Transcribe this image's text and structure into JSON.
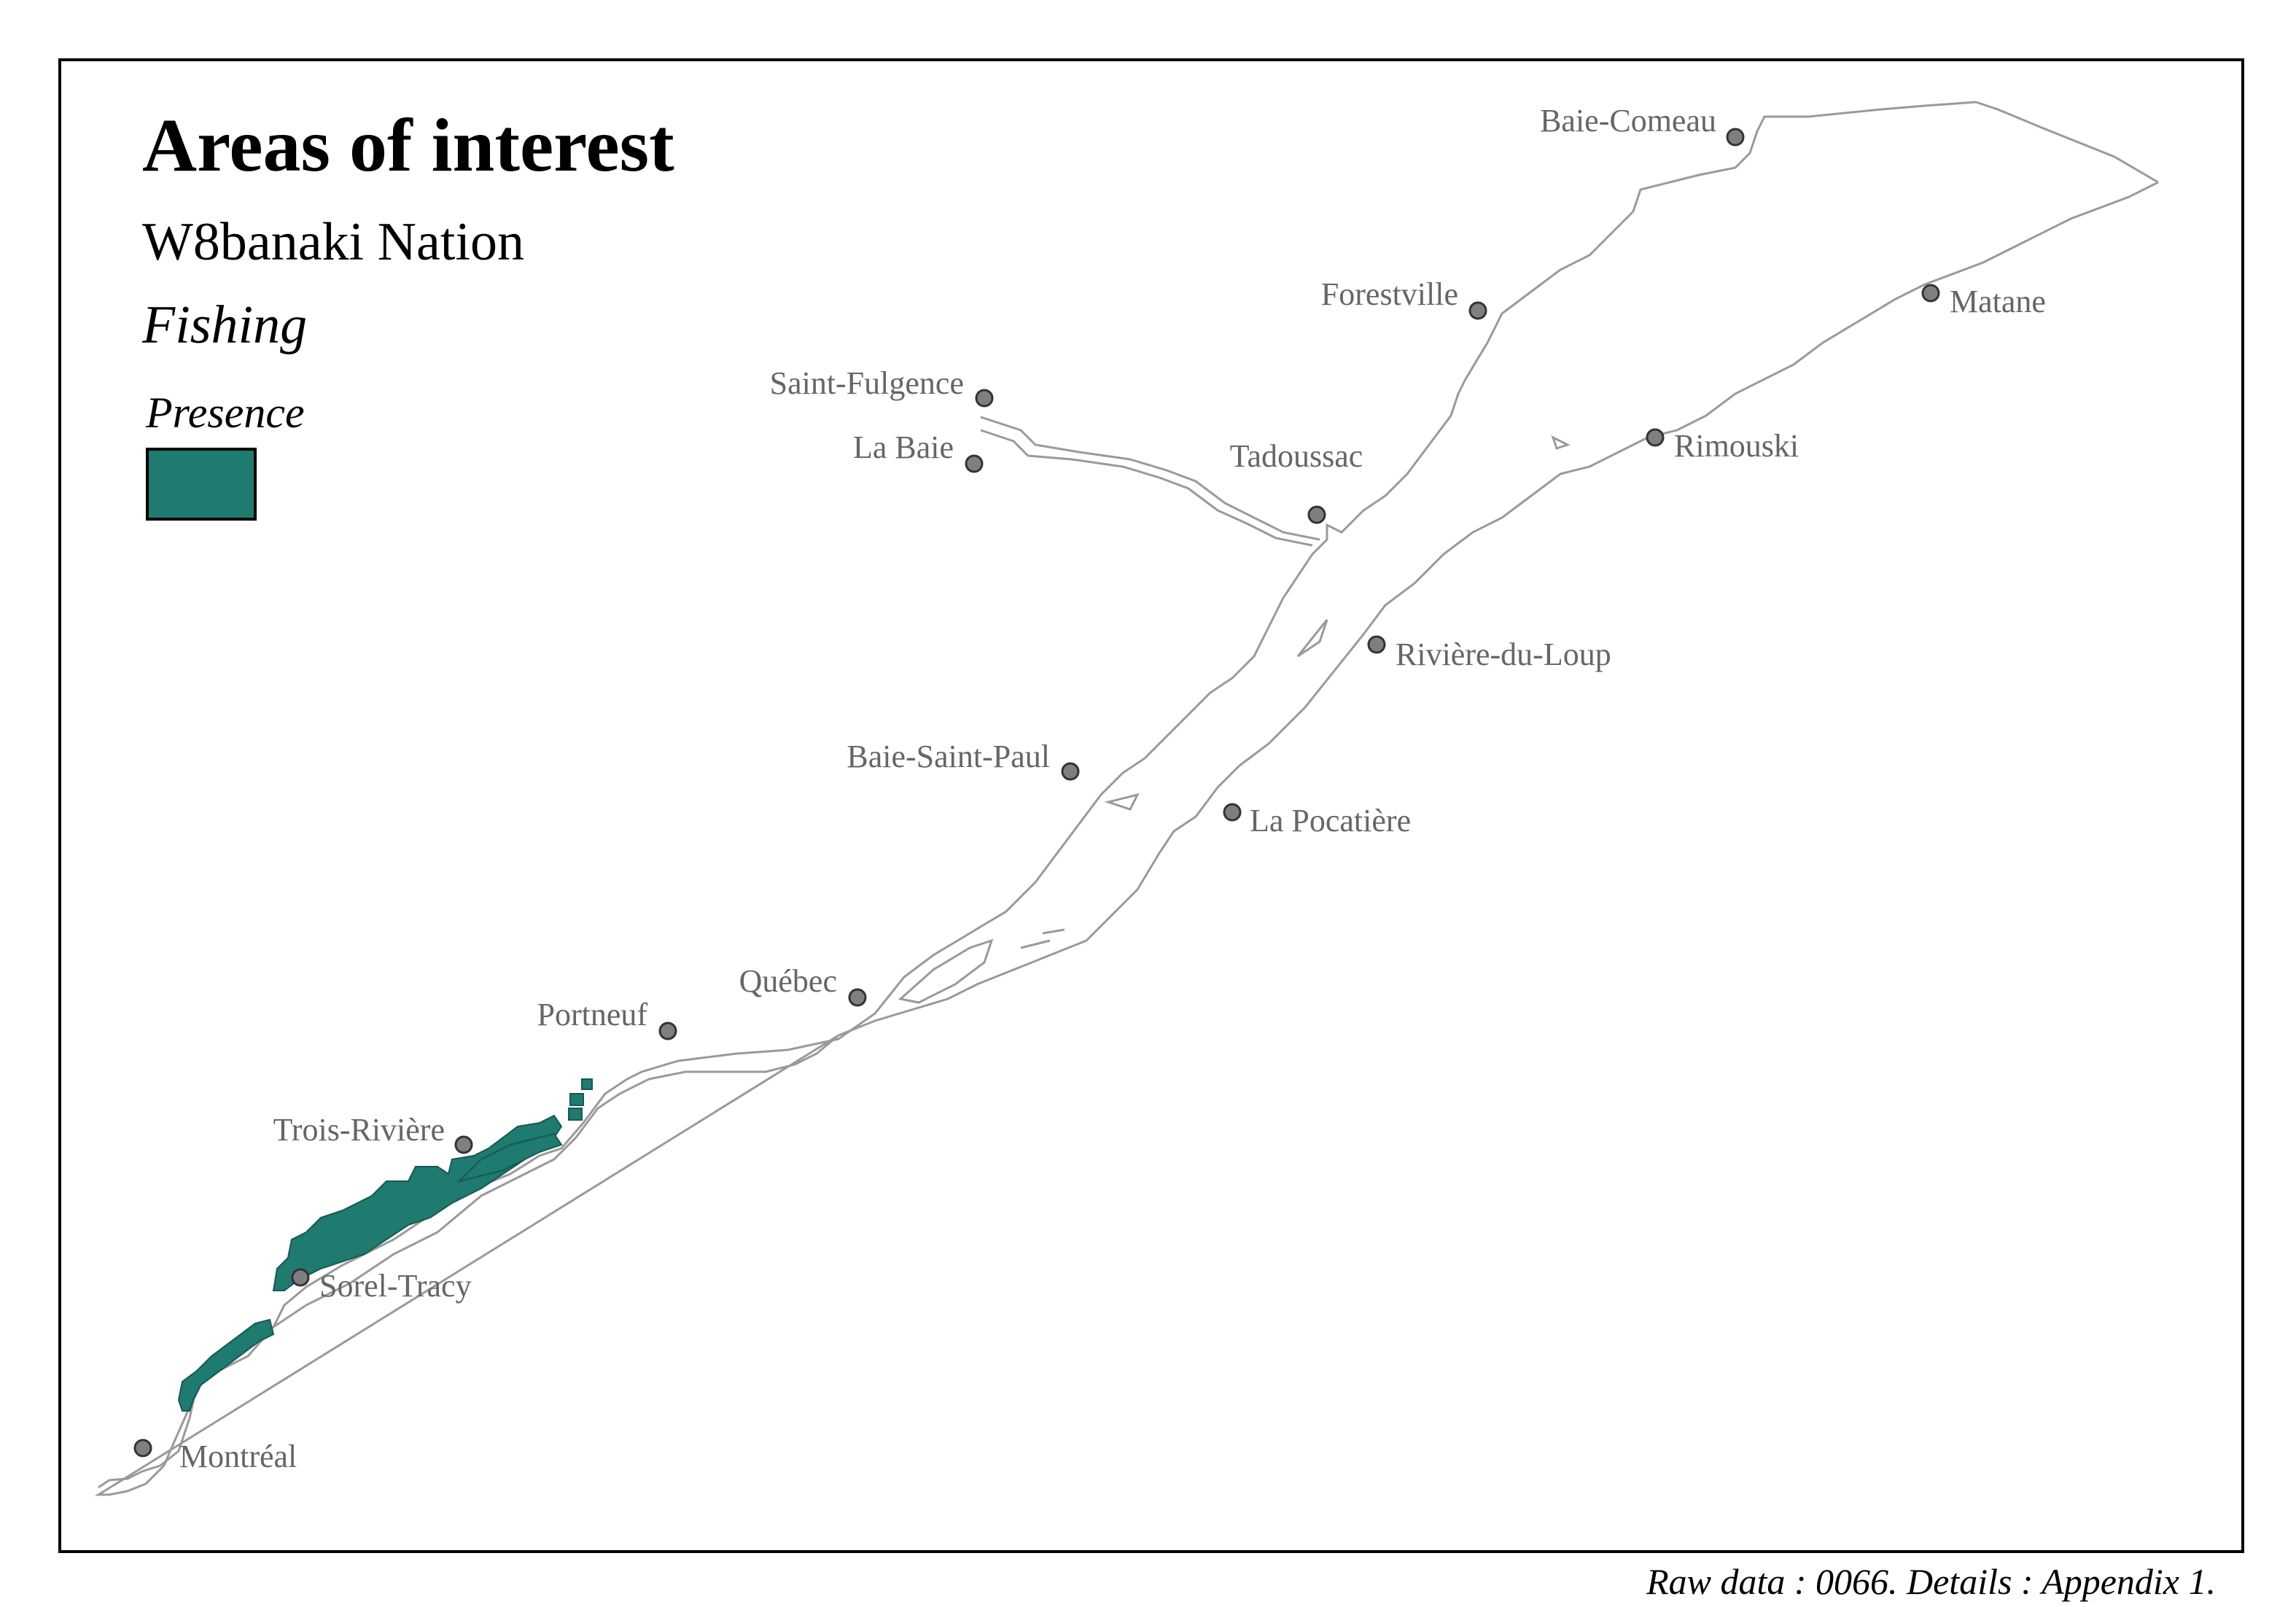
{
  "map": {
    "title": "Areas of interest",
    "subtitle": "W8banaki Nation",
    "theme": "Fishing",
    "legend": {
      "title": "Presence",
      "color": "#1f7a70"
    },
    "footer": "Raw data : 0066. Details : Appendix 1."
  },
  "cities": [
    {
      "name": "Baie-Comeau"
    },
    {
      "name": "Forestville"
    },
    {
      "name": "Matane"
    },
    {
      "name": "Saint-Fulgence"
    },
    {
      "name": "La Baie"
    },
    {
      "name": "Tadoussac"
    },
    {
      "name": "Rimouski"
    },
    {
      "name": "Rivière-du-Loup"
    },
    {
      "name": "Baie-Saint-Paul"
    },
    {
      "name": "La Pocatière"
    },
    {
      "name": "Québec"
    },
    {
      "name": "Portneuf"
    },
    {
      "name": "Trois-Rivière"
    },
    {
      "name": "Sorel-Tracy"
    },
    {
      "name": "Montréal"
    }
  ],
  "colors": {
    "river_outline": "#9a9a9a",
    "city_marker": "#7f7f7f",
    "presence": "#1f7a70"
  }
}
